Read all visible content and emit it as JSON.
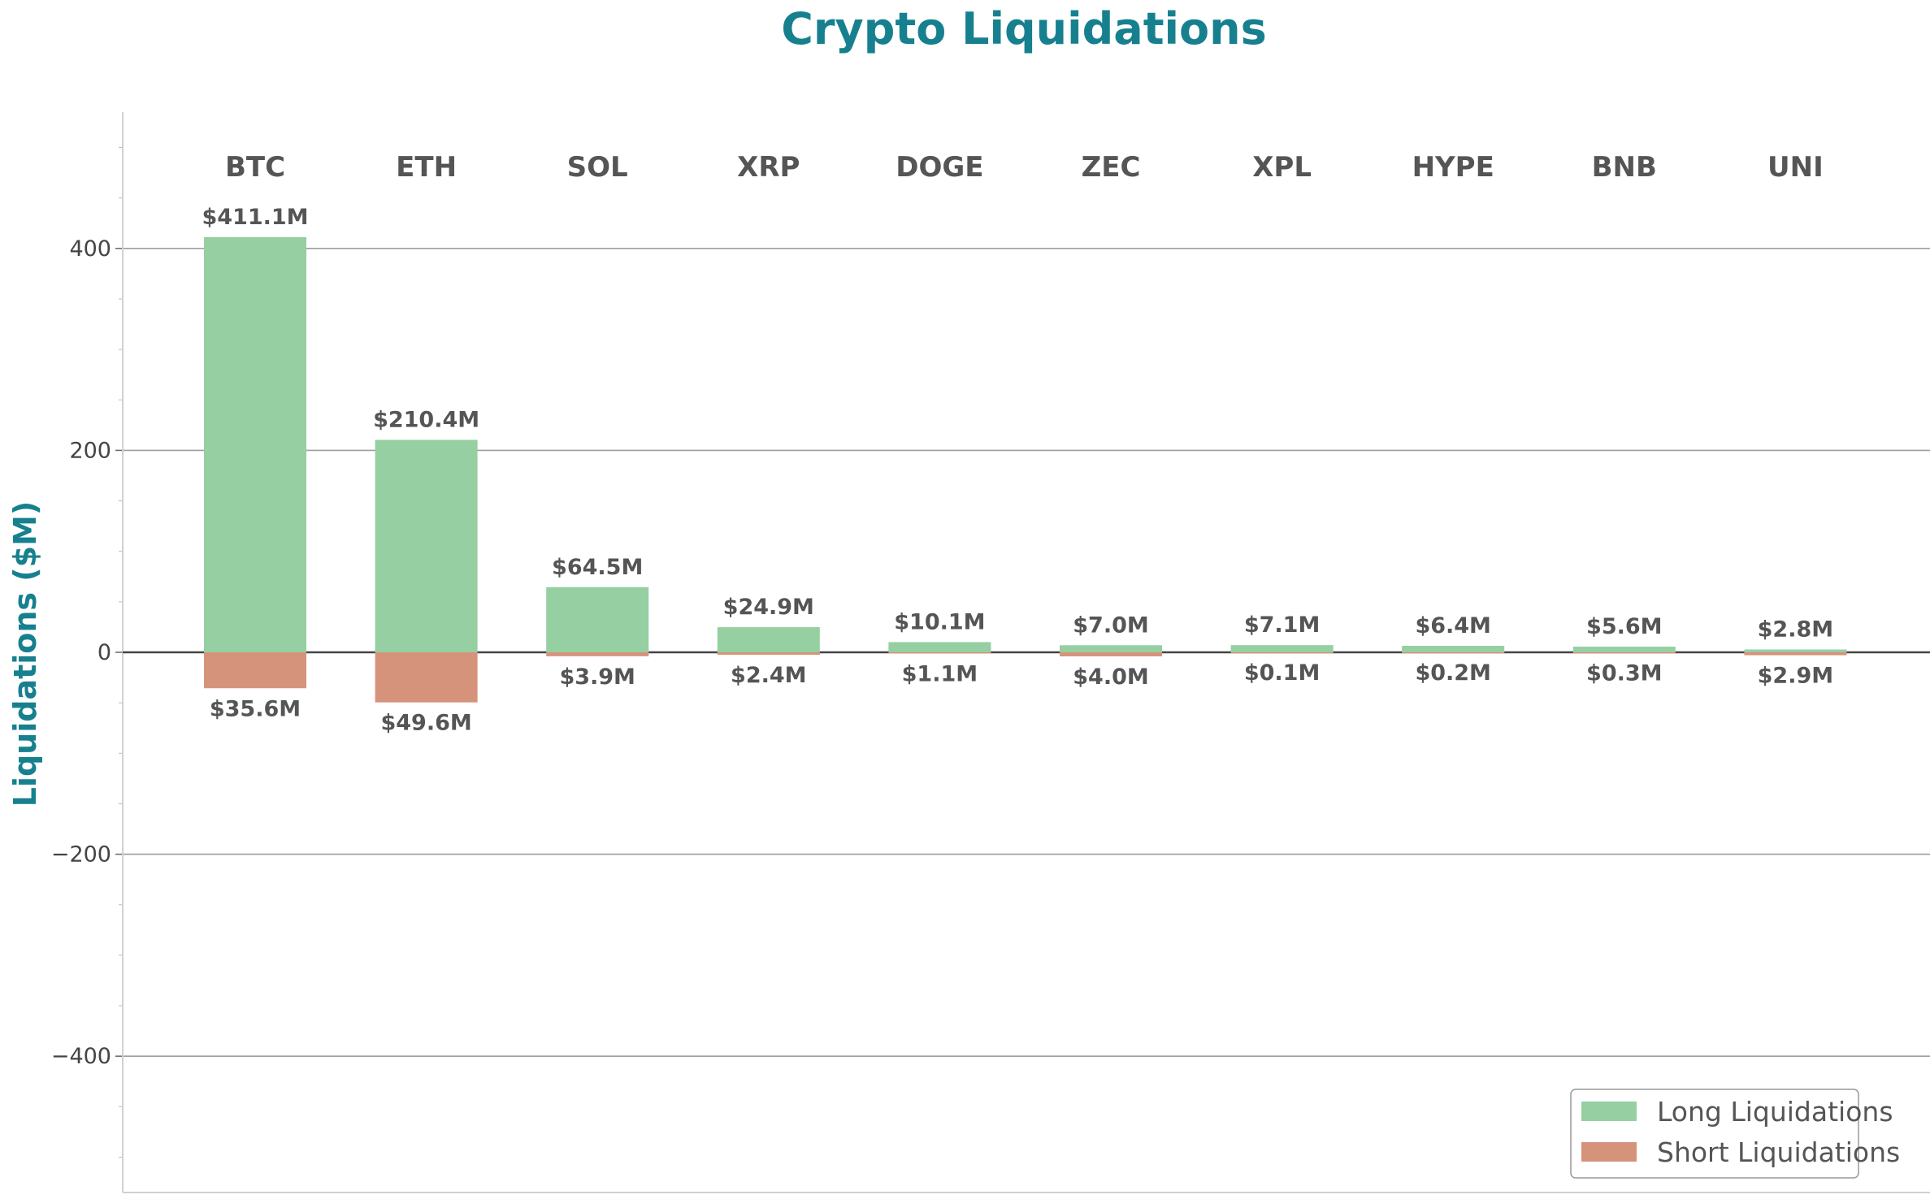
{
  "chart_data": {
    "type": "bar",
    "title": "Crypto Liquidations",
    "ylabel": "Liquidations ($M)",
    "xlabel": "",
    "categories": [
      "BTC",
      "ETH",
      "SOL",
      "XRP",
      "DOGE",
      "ZEC",
      "XPL",
      "HYPE",
      "BNB",
      "UNI"
    ],
    "series": [
      {
        "name": "Long Liquidations",
        "color": "#95cfa2",
        "values": [
          411.1,
          210.4,
          64.5,
          24.9,
          10.1,
          7.0,
          7.1,
          6.4,
          5.6,
          2.8
        ],
        "labels": [
          "$411.1M",
          "$210.4M",
          "$64.5M",
          "$24.9M",
          "$10.1M",
          "$7.0M",
          "$7.1M",
          "$6.4M",
          "$5.6M",
          "$2.8M"
        ]
      },
      {
        "name": "Short Liquidations",
        "color": "#d5937c",
        "values": [
          -35.6,
          -49.6,
          -3.9,
          -2.4,
          -1.1,
          -4.0,
          -0.1,
          -0.2,
          -0.3,
          -2.9
        ],
        "labels": [
          "$35.6M",
          "$49.6M",
          "$3.9M",
          "$2.4M",
          "$1.1M",
          "$4.0M",
          "$0.1M",
          "$0.2M",
          "$0.3M",
          "$2.9M"
        ]
      }
    ],
    "ylim": [
      -535,
      535
    ],
    "yticks": [
      -400,
      -200,
      0,
      200,
      400
    ],
    "ytick_labels": [
      "−400",
      "−200",
      "0",
      "200",
      "400"
    ],
    "grid": true,
    "legend": "lower-right",
    "colors": {
      "title": "#17808f",
      "text": "#555555",
      "zero_line": "#444444",
      "grid": "#9e9e9e"
    }
  }
}
